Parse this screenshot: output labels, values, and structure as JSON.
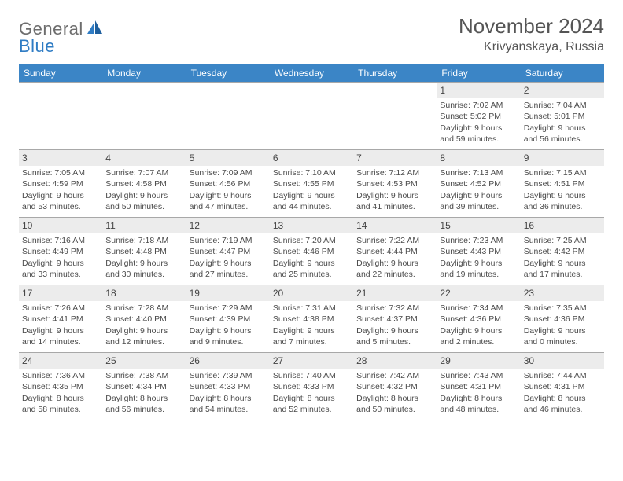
{
  "brand": {
    "general": "General",
    "blue": "Blue"
  },
  "title": "November 2024",
  "location": "Krivyanskaya, Russia",
  "colors": {
    "header_bg": "#3b85c6",
    "header_fg": "#ffffff",
    "daynum_bg": "#ececec",
    "border": "#a8a8a8",
    "text": "#4b4b4b",
    "logo_gray": "#6d6d6d",
    "logo_blue": "#2f7cc4"
  },
  "weekdays": [
    "Sunday",
    "Monday",
    "Tuesday",
    "Wednesday",
    "Thursday",
    "Friday",
    "Saturday"
  ],
  "weeks": [
    [
      {
        "n": "",
        "sr": "",
        "ss": "",
        "dl": ""
      },
      {
        "n": "",
        "sr": "",
        "ss": "",
        "dl": ""
      },
      {
        "n": "",
        "sr": "",
        "ss": "",
        "dl": ""
      },
      {
        "n": "",
        "sr": "",
        "ss": "",
        "dl": ""
      },
      {
        "n": "",
        "sr": "",
        "ss": "",
        "dl": ""
      },
      {
        "n": "1",
        "sr": "Sunrise: 7:02 AM",
        "ss": "Sunset: 5:02 PM",
        "dl": "Daylight: 9 hours and 59 minutes."
      },
      {
        "n": "2",
        "sr": "Sunrise: 7:04 AM",
        "ss": "Sunset: 5:01 PM",
        "dl": "Daylight: 9 hours and 56 minutes."
      }
    ],
    [
      {
        "n": "3",
        "sr": "Sunrise: 7:05 AM",
        "ss": "Sunset: 4:59 PM",
        "dl": "Daylight: 9 hours and 53 minutes."
      },
      {
        "n": "4",
        "sr": "Sunrise: 7:07 AM",
        "ss": "Sunset: 4:58 PM",
        "dl": "Daylight: 9 hours and 50 minutes."
      },
      {
        "n": "5",
        "sr": "Sunrise: 7:09 AM",
        "ss": "Sunset: 4:56 PM",
        "dl": "Daylight: 9 hours and 47 minutes."
      },
      {
        "n": "6",
        "sr": "Sunrise: 7:10 AM",
        "ss": "Sunset: 4:55 PM",
        "dl": "Daylight: 9 hours and 44 minutes."
      },
      {
        "n": "7",
        "sr": "Sunrise: 7:12 AM",
        "ss": "Sunset: 4:53 PM",
        "dl": "Daylight: 9 hours and 41 minutes."
      },
      {
        "n": "8",
        "sr": "Sunrise: 7:13 AM",
        "ss": "Sunset: 4:52 PM",
        "dl": "Daylight: 9 hours and 39 minutes."
      },
      {
        "n": "9",
        "sr": "Sunrise: 7:15 AM",
        "ss": "Sunset: 4:51 PM",
        "dl": "Daylight: 9 hours and 36 minutes."
      }
    ],
    [
      {
        "n": "10",
        "sr": "Sunrise: 7:16 AM",
        "ss": "Sunset: 4:49 PM",
        "dl": "Daylight: 9 hours and 33 minutes."
      },
      {
        "n": "11",
        "sr": "Sunrise: 7:18 AM",
        "ss": "Sunset: 4:48 PM",
        "dl": "Daylight: 9 hours and 30 minutes."
      },
      {
        "n": "12",
        "sr": "Sunrise: 7:19 AM",
        "ss": "Sunset: 4:47 PM",
        "dl": "Daylight: 9 hours and 27 minutes."
      },
      {
        "n": "13",
        "sr": "Sunrise: 7:20 AM",
        "ss": "Sunset: 4:46 PM",
        "dl": "Daylight: 9 hours and 25 minutes."
      },
      {
        "n": "14",
        "sr": "Sunrise: 7:22 AM",
        "ss": "Sunset: 4:44 PM",
        "dl": "Daylight: 9 hours and 22 minutes."
      },
      {
        "n": "15",
        "sr": "Sunrise: 7:23 AM",
        "ss": "Sunset: 4:43 PM",
        "dl": "Daylight: 9 hours and 19 minutes."
      },
      {
        "n": "16",
        "sr": "Sunrise: 7:25 AM",
        "ss": "Sunset: 4:42 PM",
        "dl": "Daylight: 9 hours and 17 minutes."
      }
    ],
    [
      {
        "n": "17",
        "sr": "Sunrise: 7:26 AM",
        "ss": "Sunset: 4:41 PM",
        "dl": "Daylight: 9 hours and 14 minutes."
      },
      {
        "n": "18",
        "sr": "Sunrise: 7:28 AM",
        "ss": "Sunset: 4:40 PM",
        "dl": "Daylight: 9 hours and 12 minutes."
      },
      {
        "n": "19",
        "sr": "Sunrise: 7:29 AM",
        "ss": "Sunset: 4:39 PM",
        "dl": "Daylight: 9 hours and 9 minutes."
      },
      {
        "n": "20",
        "sr": "Sunrise: 7:31 AM",
        "ss": "Sunset: 4:38 PM",
        "dl": "Daylight: 9 hours and 7 minutes."
      },
      {
        "n": "21",
        "sr": "Sunrise: 7:32 AM",
        "ss": "Sunset: 4:37 PM",
        "dl": "Daylight: 9 hours and 5 minutes."
      },
      {
        "n": "22",
        "sr": "Sunrise: 7:34 AM",
        "ss": "Sunset: 4:36 PM",
        "dl": "Daylight: 9 hours and 2 minutes."
      },
      {
        "n": "23",
        "sr": "Sunrise: 7:35 AM",
        "ss": "Sunset: 4:36 PM",
        "dl": "Daylight: 9 hours and 0 minutes."
      }
    ],
    [
      {
        "n": "24",
        "sr": "Sunrise: 7:36 AM",
        "ss": "Sunset: 4:35 PM",
        "dl": "Daylight: 8 hours and 58 minutes."
      },
      {
        "n": "25",
        "sr": "Sunrise: 7:38 AM",
        "ss": "Sunset: 4:34 PM",
        "dl": "Daylight: 8 hours and 56 minutes."
      },
      {
        "n": "26",
        "sr": "Sunrise: 7:39 AM",
        "ss": "Sunset: 4:33 PM",
        "dl": "Daylight: 8 hours and 54 minutes."
      },
      {
        "n": "27",
        "sr": "Sunrise: 7:40 AM",
        "ss": "Sunset: 4:33 PM",
        "dl": "Daylight: 8 hours and 52 minutes."
      },
      {
        "n": "28",
        "sr": "Sunrise: 7:42 AM",
        "ss": "Sunset: 4:32 PM",
        "dl": "Daylight: 8 hours and 50 minutes."
      },
      {
        "n": "29",
        "sr": "Sunrise: 7:43 AM",
        "ss": "Sunset: 4:31 PM",
        "dl": "Daylight: 8 hours and 48 minutes."
      },
      {
        "n": "30",
        "sr": "Sunrise: 7:44 AM",
        "ss": "Sunset: 4:31 PM",
        "dl": "Daylight: 8 hours and 46 minutes."
      }
    ]
  ]
}
